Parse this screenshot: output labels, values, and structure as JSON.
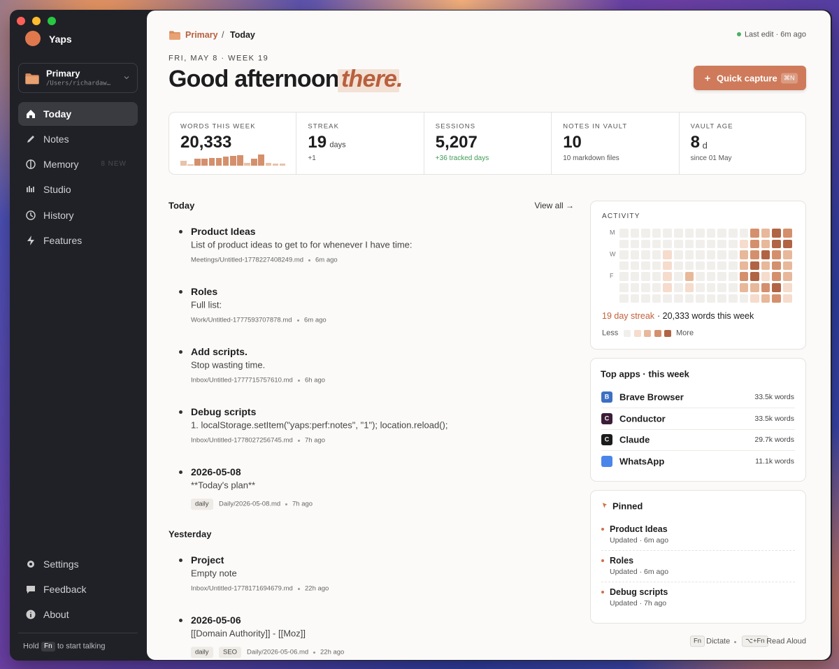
{
  "window": {
    "app_name": "Yaps"
  },
  "workspace": {
    "name": "Primary",
    "path": "/Users/richardaw…"
  },
  "nav": [
    {
      "label": "Today",
      "active": true
    },
    {
      "label": "Notes"
    },
    {
      "label": "Memory",
      "badge": "8 NEW"
    },
    {
      "label": "Studio"
    },
    {
      "label": "History"
    },
    {
      "label": "Features"
    }
  ],
  "nav_bottom": [
    {
      "label": "Settings"
    },
    {
      "label": "Feedback"
    },
    {
      "label": "About"
    }
  ],
  "hint": {
    "before": "Hold",
    "key": "Fn",
    "after": "to start talking"
  },
  "breadcrumb": {
    "parent": "Primary",
    "separator": "/",
    "current": "Today"
  },
  "last_edit": "Last edit · 6m ago",
  "date_line": "FRI, MAY 8 · WEEK 19",
  "greeting": {
    "text": "Good afternoon,",
    "name": "there."
  },
  "quick_capture": {
    "label": "Quick capture",
    "shortcut": "⌘N"
  },
  "stats": [
    {
      "label": "WORDS THIS WEEK",
      "value": "20,333",
      "bars": [
        5,
        1,
        8,
        8,
        9,
        9,
        10,
        11,
        12,
        3,
        8,
        13,
        3,
        2,
        2
      ]
    },
    {
      "label": "STREAK",
      "value": "19",
      "unit": "days",
      "sub": "+1"
    },
    {
      "label": "SESSIONS",
      "value": "5,207",
      "sub": "+36 tracked days",
      "sub_tone": "positive"
    },
    {
      "label": "NOTES IN VAULT",
      "value": "10",
      "sub": "10 markdown files"
    },
    {
      "label": "VAULT AGE",
      "value": "8",
      "unit": "d",
      "sub": "since 01 May"
    }
  ],
  "sections": [
    {
      "heading": "Today",
      "action": "View all →",
      "notes": [
        {
          "title": "Product Ideas",
          "preview": "List of product ideas to get to for whenever I have time:",
          "path": "Meetings/Untitled-1778227408249.md",
          "time": "6m ago"
        },
        {
          "title": "Roles",
          "preview": "Full list:",
          "path": "Work/Untitled-1777593707878.md",
          "time": "6m ago"
        },
        {
          "title": "Add scripts.",
          "preview": "Stop wasting time.",
          "path": "Inbox/Untitled-1777715757610.md",
          "time": "6h ago"
        },
        {
          "title": "Debug scripts",
          "preview": "1. localStorage.setItem(\"yaps:perf:notes\", \"1\"); location.reload();",
          "path": "Inbox/Untitled-1778027256745.md",
          "time": "7h ago"
        },
        {
          "title": "2026-05-08",
          "preview": "**Today's plan**",
          "path": "Daily/2026-05-08.md",
          "time": "7h ago",
          "tags": [
            "daily"
          ]
        }
      ]
    },
    {
      "heading": "Yesterday",
      "notes": [
        {
          "title": "Project",
          "preview": "Empty note",
          "path": "Inbox/Untitled-1778171694679.md",
          "time": "22h ago"
        },
        {
          "title": "2026-05-06",
          "preview": "[[Domain Authority]] - [[Moz]]",
          "path": "Daily/2026-05-06.md",
          "time": "22h ago",
          "tags": [
            "daily",
            "SEO"
          ]
        }
      ]
    }
  ],
  "activity": {
    "title": "ACTIVITY",
    "row_labels": [
      "M",
      null,
      "W",
      null,
      "F",
      null,
      null
    ],
    "levels": [
      [
        0,
        0,
        0,
        0,
        0,
        0,
        0,
        0,
        0,
        0,
        0,
        0,
        3,
        2,
        4,
        3
      ],
      [
        0,
        0,
        0,
        0,
        0,
        0,
        0,
        0,
        0,
        0,
        0,
        1,
        3,
        2,
        4,
        4
      ],
      [
        0,
        0,
        0,
        0,
        1,
        0,
        0,
        0,
        0,
        0,
        0,
        2,
        3,
        4,
        3,
        2
      ],
      [
        0,
        0,
        0,
        0,
        1,
        0,
        0,
        0,
        0,
        0,
        0,
        2,
        4,
        2,
        3,
        2
      ],
      [
        0,
        0,
        0,
        0,
        1,
        0,
        2,
        0,
        0,
        0,
        0,
        3,
        4,
        1,
        3,
        2
      ],
      [
        0,
        0,
        0,
        0,
        1,
        0,
        1,
        0,
        0,
        0,
        0,
        2,
        2,
        3,
        4,
        1
      ],
      [
        0,
        0,
        0,
        0,
        0,
        0,
        0,
        0,
        0,
        0,
        0,
        0,
        1,
        2,
        3,
        1
      ]
    ],
    "streak": "19 day streak",
    "summary": "· 20,333 words this week",
    "legend_low": "Less",
    "legend_high": "More"
  },
  "top_apps": {
    "title": "Top apps · this week",
    "apps": [
      {
        "letter": "B",
        "name": "Brave Browser",
        "words": "33.5k words",
        "color": "#3d6fc4"
      },
      {
        "letter": "C",
        "name": "Conductor",
        "words": "33.5k words",
        "color": "#3b1d37"
      },
      {
        "letter": "C",
        "name": "Claude",
        "words": "29.7k words",
        "color": "#1b1b1b"
      },
      {
        "name": "WhatsApp",
        "words": "11.1k words",
        "color": "#4a86ea"
      }
    ]
  },
  "pinned": {
    "title": "Pinned",
    "items": [
      {
        "title": "Product Ideas",
        "updated": "Updated · 6m ago"
      },
      {
        "title": "Roles",
        "updated": "Updated · 6m ago"
      },
      {
        "title": "Debug scripts",
        "updated": "Updated · 7h ago"
      }
    ]
  },
  "footer": {
    "dictate_key": "Fn",
    "dictate": "Dictate",
    "read_key": "⌥+Fn",
    "read": "Read Aloud"
  }
}
